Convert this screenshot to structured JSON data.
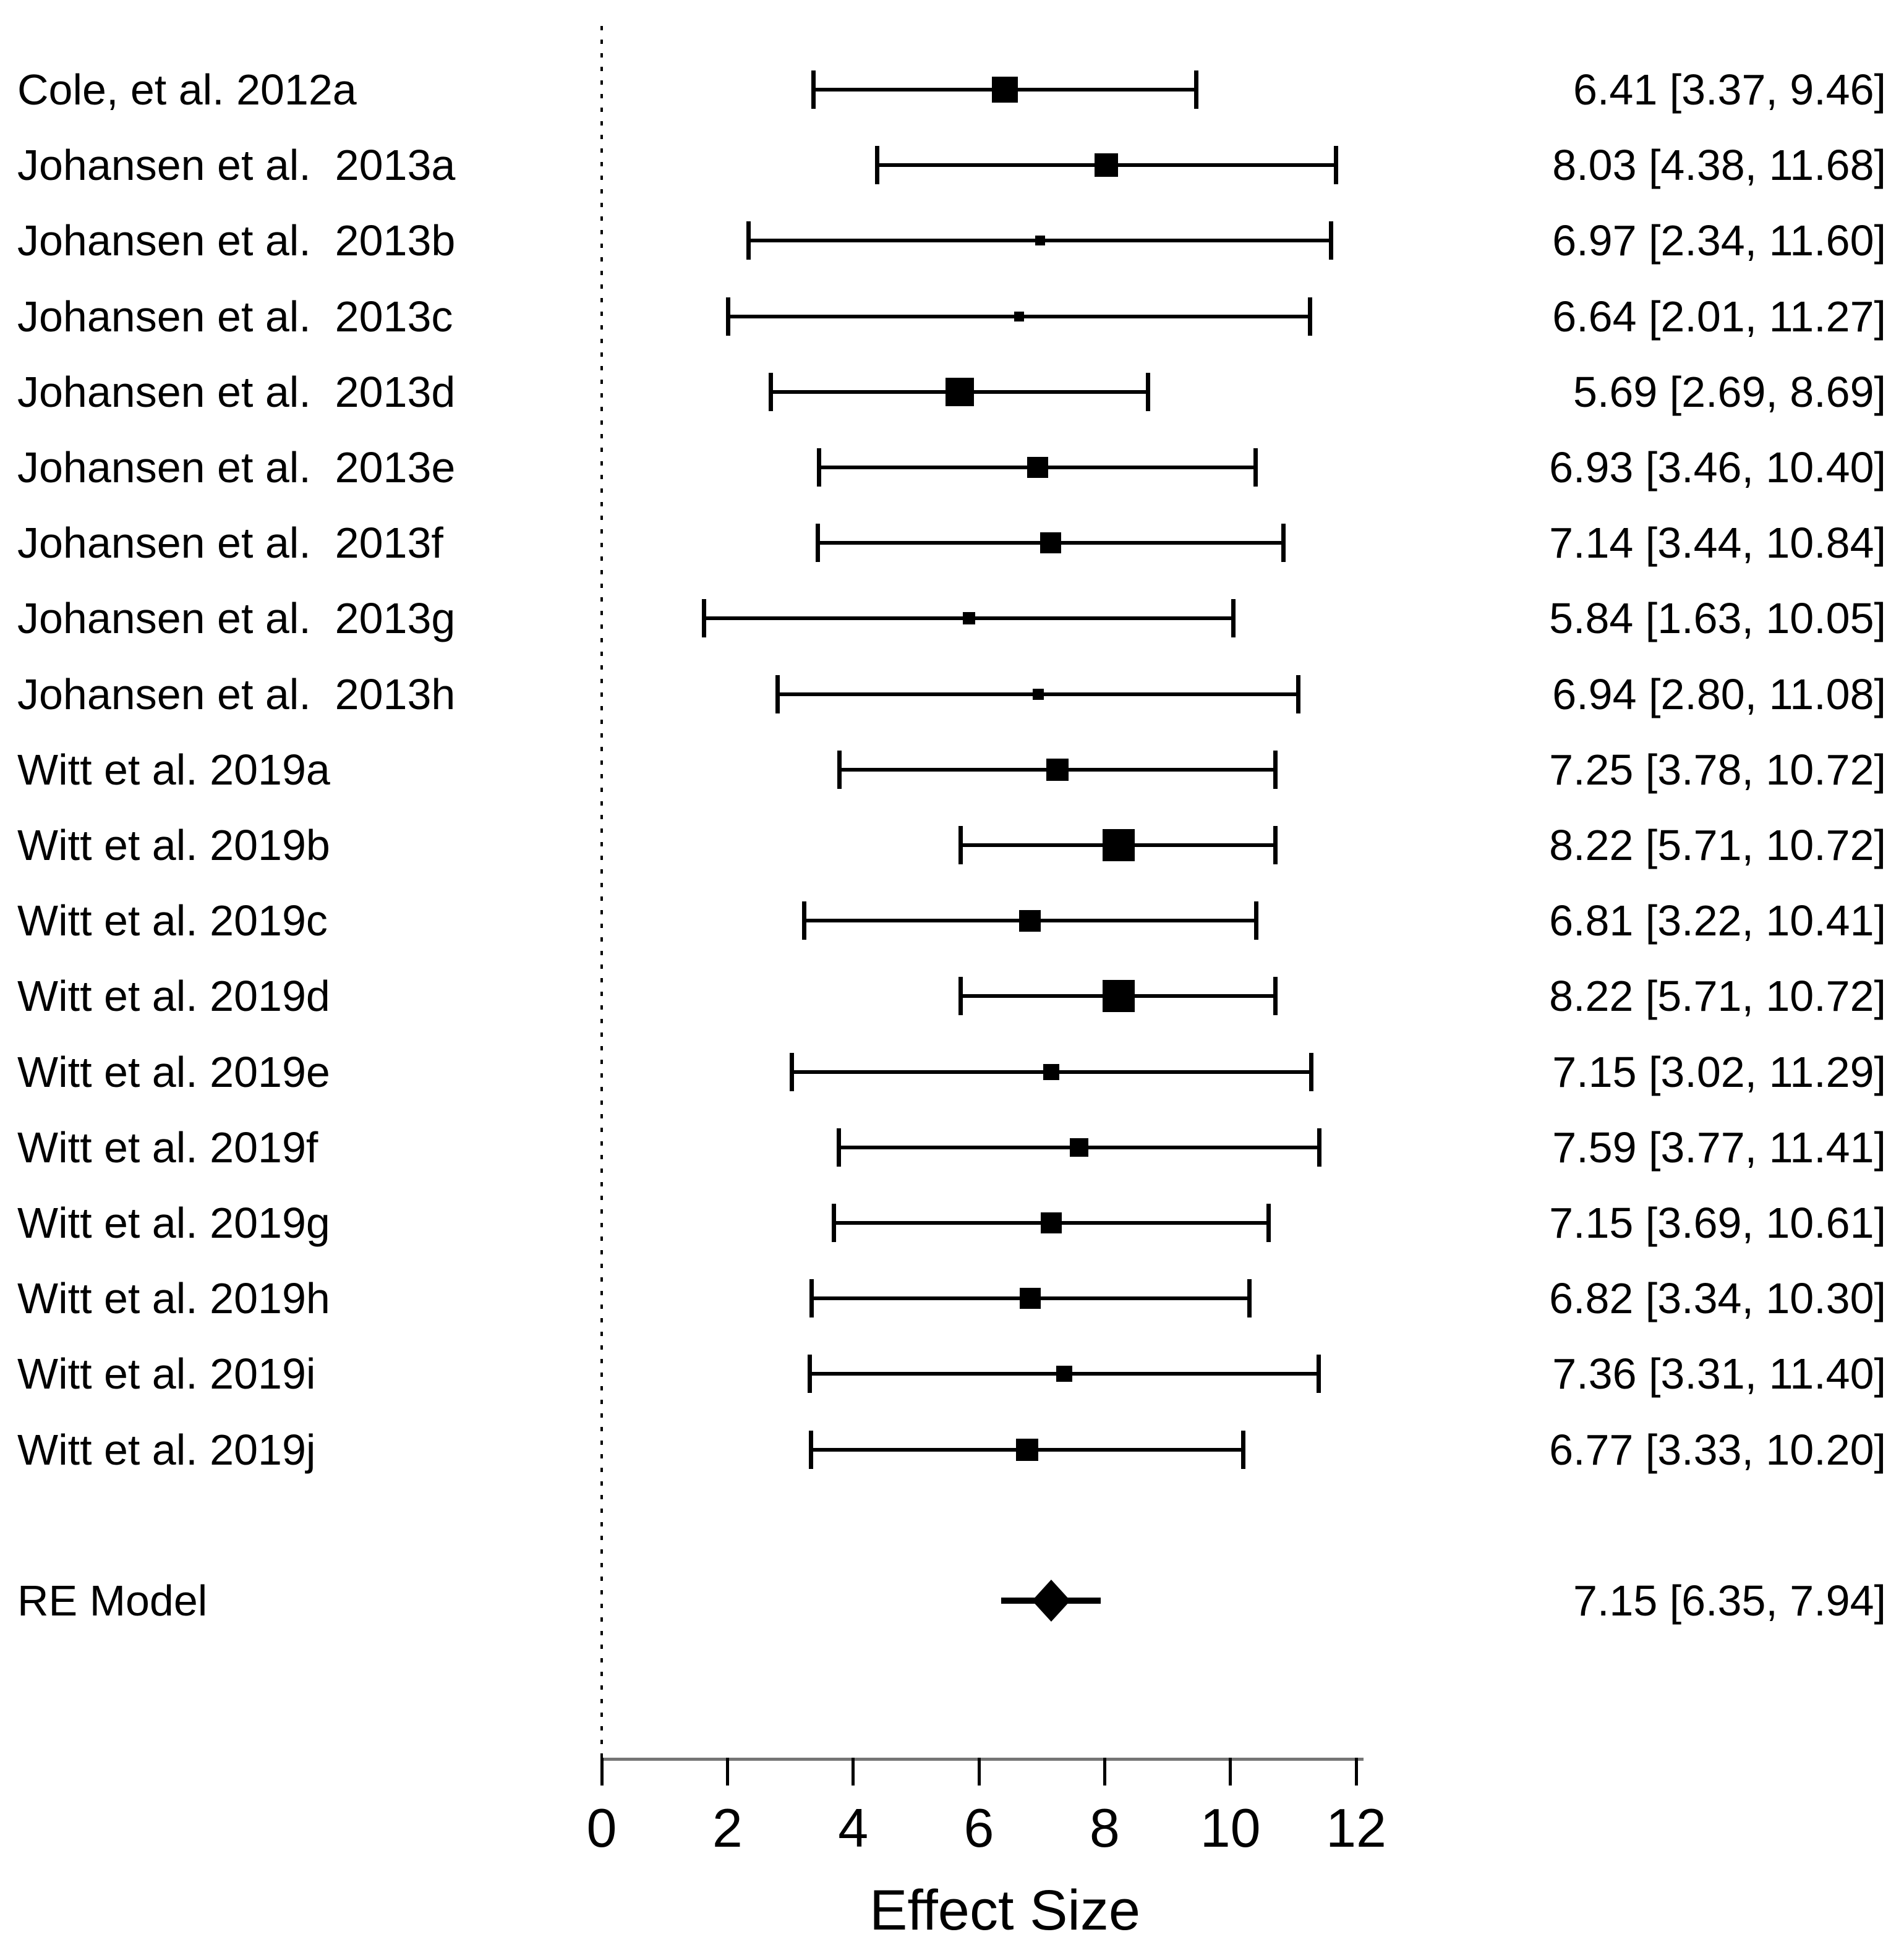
{
  "chart_data": {
    "type": "forest",
    "xlabel": "Effect Size",
    "xlim": [
      0,
      12
    ],
    "x_ticks": [
      0,
      2,
      4,
      6,
      8,
      10,
      12
    ],
    "reference_line_x": 0,
    "grid": false,
    "studies": [
      {
        "label": "Cole, et al. 2012a",
        "estimate": 6.41,
        "ci_lower": 3.37,
        "ci_upper": 9.46,
        "annotation": "6.41 [3.37, 9.46]",
        "marker_size": 42
      },
      {
        "label": "Johansen et al.  2013a",
        "estimate": 8.03,
        "ci_lower": 4.38,
        "ci_upper": 11.68,
        "annotation": "8.03 [4.38, 11.68]",
        "marker_size": 38
      },
      {
        "label": "Johansen et al.  2013b",
        "estimate": 6.97,
        "ci_lower": 2.34,
        "ci_upper": 11.6,
        "annotation": "6.97 [2.34, 11.60]",
        "marker_size": 16
      },
      {
        "label": "Johansen et al.  2013c",
        "estimate": 6.64,
        "ci_lower": 2.01,
        "ci_upper": 11.27,
        "annotation": "6.64 [2.01, 11.27]",
        "marker_size": 16
      },
      {
        "label": "Johansen et al.  2013d",
        "estimate": 5.69,
        "ci_lower": 2.69,
        "ci_upper": 8.69,
        "annotation": "5.69 [2.69, 8.69]",
        "marker_size": 46
      },
      {
        "label": "Johansen et al.  2013e",
        "estimate": 6.93,
        "ci_lower": 3.46,
        "ci_upper": 10.4,
        "annotation": "6.93 [3.46, 10.40]",
        "marker_size": 34
      },
      {
        "label": "Johansen et al.  2013f",
        "estimate": 7.14,
        "ci_lower": 3.44,
        "ci_upper": 10.84,
        "annotation": "7.14 [3.44, 10.84]",
        "marker_size": 34
      },
      {
        "label": "Johansen et al.  2013g",
        "estimate": 5.84,
        "ci_lower": 1.63,
        "ci_upper": 10.05,
        "annotation": "5.84 [1.63, 10.05]",
        "marker_size": 20
      },
      {
        "label": "Johansen et al.  2013h",
        "estimate": 6.94,
        "ci_lower": 2.8,
        "ci_upper": 11.08,
        "annotation": "6.94 [2.80, 11.08]",
        "marker_size": 18
      },
      {
        "label": "Witt et al. 2019a",
        "estimate": 7.25,
        "ci_lower": 3.78,
        "ci_upper": 10.72,
        "annotation": "7.25 [3.78, 10.72]",
        "marker_size": 36
      },
      {
        "label": "Witt et al. 2019b",
        "estimate": 8.22,
        "ci_lower": 5.71,
        "ci_upper": 10.72,
        "annotation": "8.22 [5.71, 10.72]",
        "marker_size": 52
      },
      {
        "label": "Witt et al. 2019c",
        "estimate": 6.81,
        "ci_lower": 3.22,
        "ci_upper": 10.41,
        "annotation": "6.81 [3.22, 10.41]",
        "marker_size": 35
      },
      {
        "label": "Witt et al. 2019d",
        "estimate": 8.22,
        "ci_lower": 5.71,
        "ci_upper": 10.72,
        "annotation": "8.22 [5.71, 10.72]",
        "marker_size": 52
      },
      {
        "label": "Witt et al. 2019e",
        "estimate": 7.15,
        "ci_lower": 3.02,
        "ci_upper": 11.29,
        "annotation": "7.15 [3.02, 11.29]",
        "marker_size": 26
      },
      {
        "label": "Witt et al. 2019f",
        "estimate": 7.59,
        "ci_lower": 3.77,
        "ci_upper": 11.41,
        "annotation": "7.59 [3.77, 11.41]",
        "marker_size": 30
      },
      {
        "label": "Witt et al. 2019g",
        "estimate": 7.15,
        "ci_lower": 3.69,
        "ci_upper": 10.61,
        "annotation": "7.15 [3.69, 10.61]",
        "marker_size": 34
      },
      {
        "label": "Witt et al. 2019h",
        "estimate": 6.82,
        "ci_lower": 3.34,
        "ci_upper": 10.3,
        "annotation": "6.82 [3.34, 10.30]",
        "marker_size": 34
      },
      {
        "label": "Witt et al. 2019i",
        "estimate": 7.36,
        "ci_lower": 3.31,
        "ci_upper": 11.4,
        "annotation": "7.36 [3.31, 11.40]",
        "marker_size": 26
      },
      {
        "label": "Witt et al. 2019j",
        "estimate": 6.77,
        "ci_lower": 3.33,
        "ci_upper": 10.2,
        "annotation": "6.77 [3.33, 10.20]",
        "marker_size": 36
      }
    ],
    "summary": {
      "label": "RE Model",
      "estimate": 7.15,
      "ci_lower": 6.35,
      "ci_upper": 7.94,
      "annotation": "7.15 [6.35, 7.94]"
    }
  },
  "colors": {
    "marker": "#000000",
    "text": "#000000",
    "axis_line": "#757575",
    "background": "#ffffff"
  }
}
